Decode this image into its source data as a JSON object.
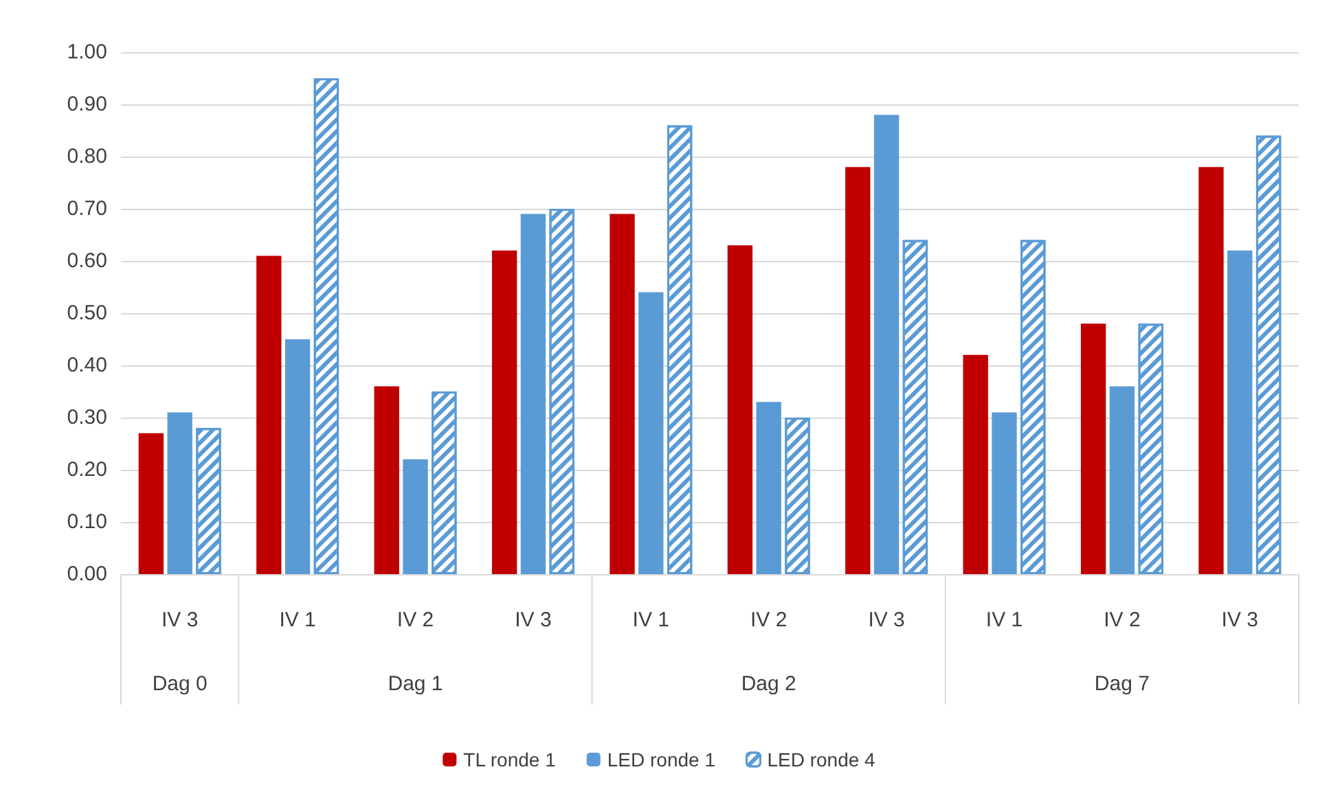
{
  "chart_data": {
    "type": "bar",
    "categories": [
      "IV 3",
      "IV 1",
      "IV 2",
      "IV 3",
      "IV 1",
      "IV 2",
      "IV 3",
      "IV 1",
      "IV 2",
      "IV 3"
    ],
    "series": [
      {
        "name": "TL ronde 1",
        "color": "#c00000",
        "values": [
          0.27,
          0.61,
          0.36,
          0.62,
          0.69,
          0.63,
          0.78,
          0.42,
          0.48,
          0.78
        ]
      },
      {
        "name": "LED ronde 1",
        "color": "#5b9bd5",
        "values": [
          0.31,
          0.45,
          0.22,
          0.69,
          0.54,
          0.33,
          0.88,
          0.31,
          0.36,
          0.62
        ]
      },
      {
        "name": "LED ronde 4",
        "color": "#5b9bd5",
        "values": [
          0.28,
          0.95,
          0.35,
          0.7,
          0.86,
          0.3,
          0.64,
          0.64,
          0.48,
          0.84
        ]
      }
    ],
    "ylim": [
      0,
      1
    ],
    "yticks": [
      {
        "value": 0,
        "label": "0.00"
      },
      {
        "value": 0.1,
        "label": "0.10"
      },
      {
        "value": 0.2,
        "label": "0.20"
      },
      {
        "value": 0.3,
        "label": "0.30"
      },
      {
        "value": 0.4,
        "label": "0.40"
      },
      {
        "value": 0.5,
        "label": "0.50"
      },
      {
        "value": 0.6,
        "label": "0.60"
      },
      {
        "value": 0.7,
        "label": "0.70"
      },
      {
        "value": 0.8,
        "label": "0.80"
      },
      {
        "value": 0.9,
        "label": "0.90"
      },
      {
        "value": 1,
        "label": "1.00"
      }
    ],
    "annotations": [
      "Dag 0",
      "Dag 1",
      "Dag 2",
      "Dag 7"
    ],
    "grid": "y",
    "legend": "bottom"
  }
}
